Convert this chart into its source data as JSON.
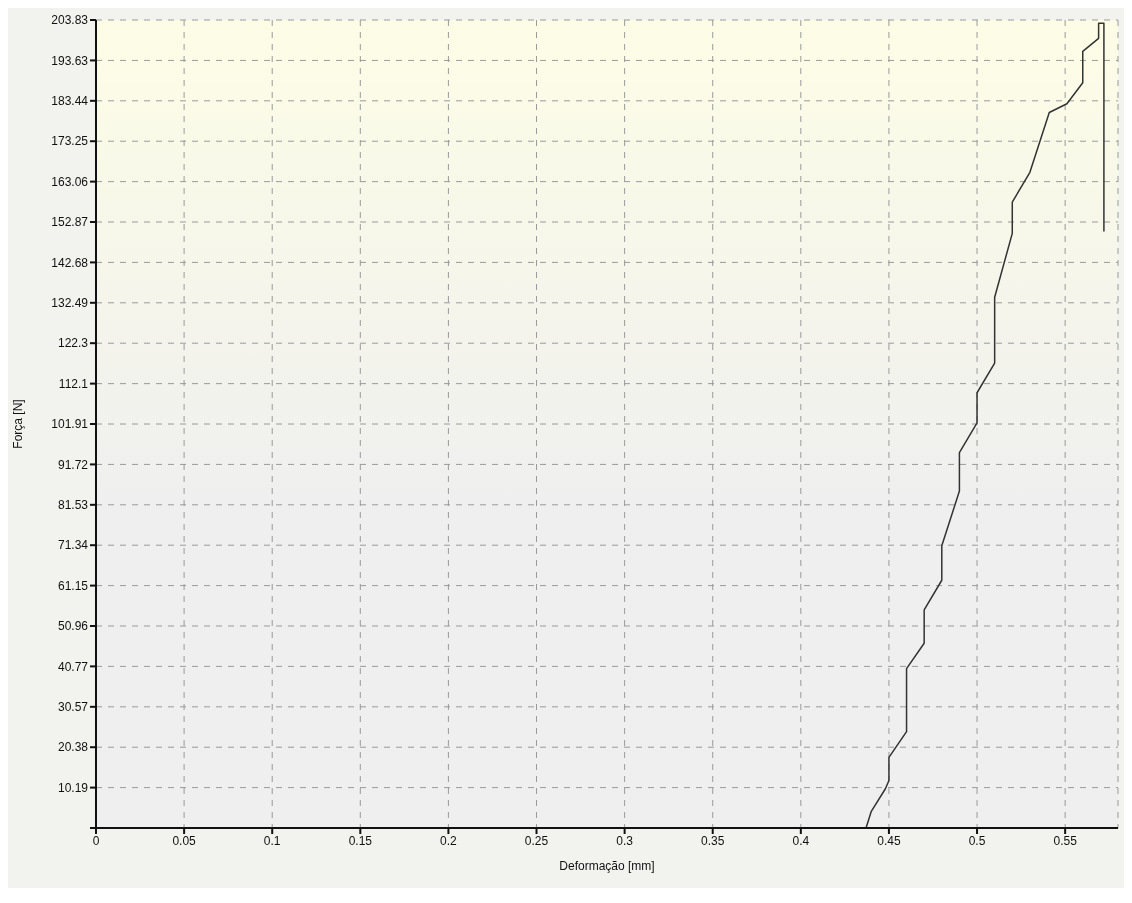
{
  "chart_data": {
    "type": "line",
    "xlabel": "Deformação [mm]",
    "ylabel": "Força [N]",
    "x": [
      0.437,
      0.44,
      0.448,
      0.45,
      0.45,
      0.46,
      0.46,
      0.47,
      0.47,
      0.48,
      0.48,
      0.49,
      0.49,
      0.5,
      0.5,
      0.51,
      0.51,
      0.52,
      0.52,
      0.53,
      0.541,
      0.551,
      0.56,
      0.56,
      0.569,
      0.569,
      0.572,
      0.572
    ],
    "series": [
      {
        "color": "#333333",
        "values": [
          0,
          4.2,
          9.9,
          12,
          17.8,
          24.3,
          40.2,
          46.6,
          55,
          62.5,
          71.2,
          85,
          94.7,
          102.2,
          109.8,
          117.3,
          133.9,
          150,
          157.9,
          165.4,
          180.5,
          182.7,
          188,
          195.9,
          199.2,
          203,
          203,
          150.5
        ]
      }
    ],
    "xlim": [
      0,
      0.58
    ],
    "xticks": [
      {
        "value": 0,
        "label": "0"
      },
      0.05,
      0.1,
      0.15,
      0.2,
      0.25,
      0.3,
      0.35,
      0.4,
      0.45,
      0.5,
      0.55
    ],
    "ylim": [
      0,
      203.83
    ],
    "yticks": [
      {
        "value": 0,
        "label": null
      },
      10.19,
      20.38,
      30.57,
      40.77,
      50.96,
      61.15,
      71.34,
      81.53,
      91.72,
      101.91,
      112.1,
      122.3,
      132.49,
      142.68,
      152.87,
      163.06,
      173.25,
      183.44,
      193.63,
      203.83
    ],
    "grid": true,
    "line_style": "solid",
    "marker": "none"
  }
}
